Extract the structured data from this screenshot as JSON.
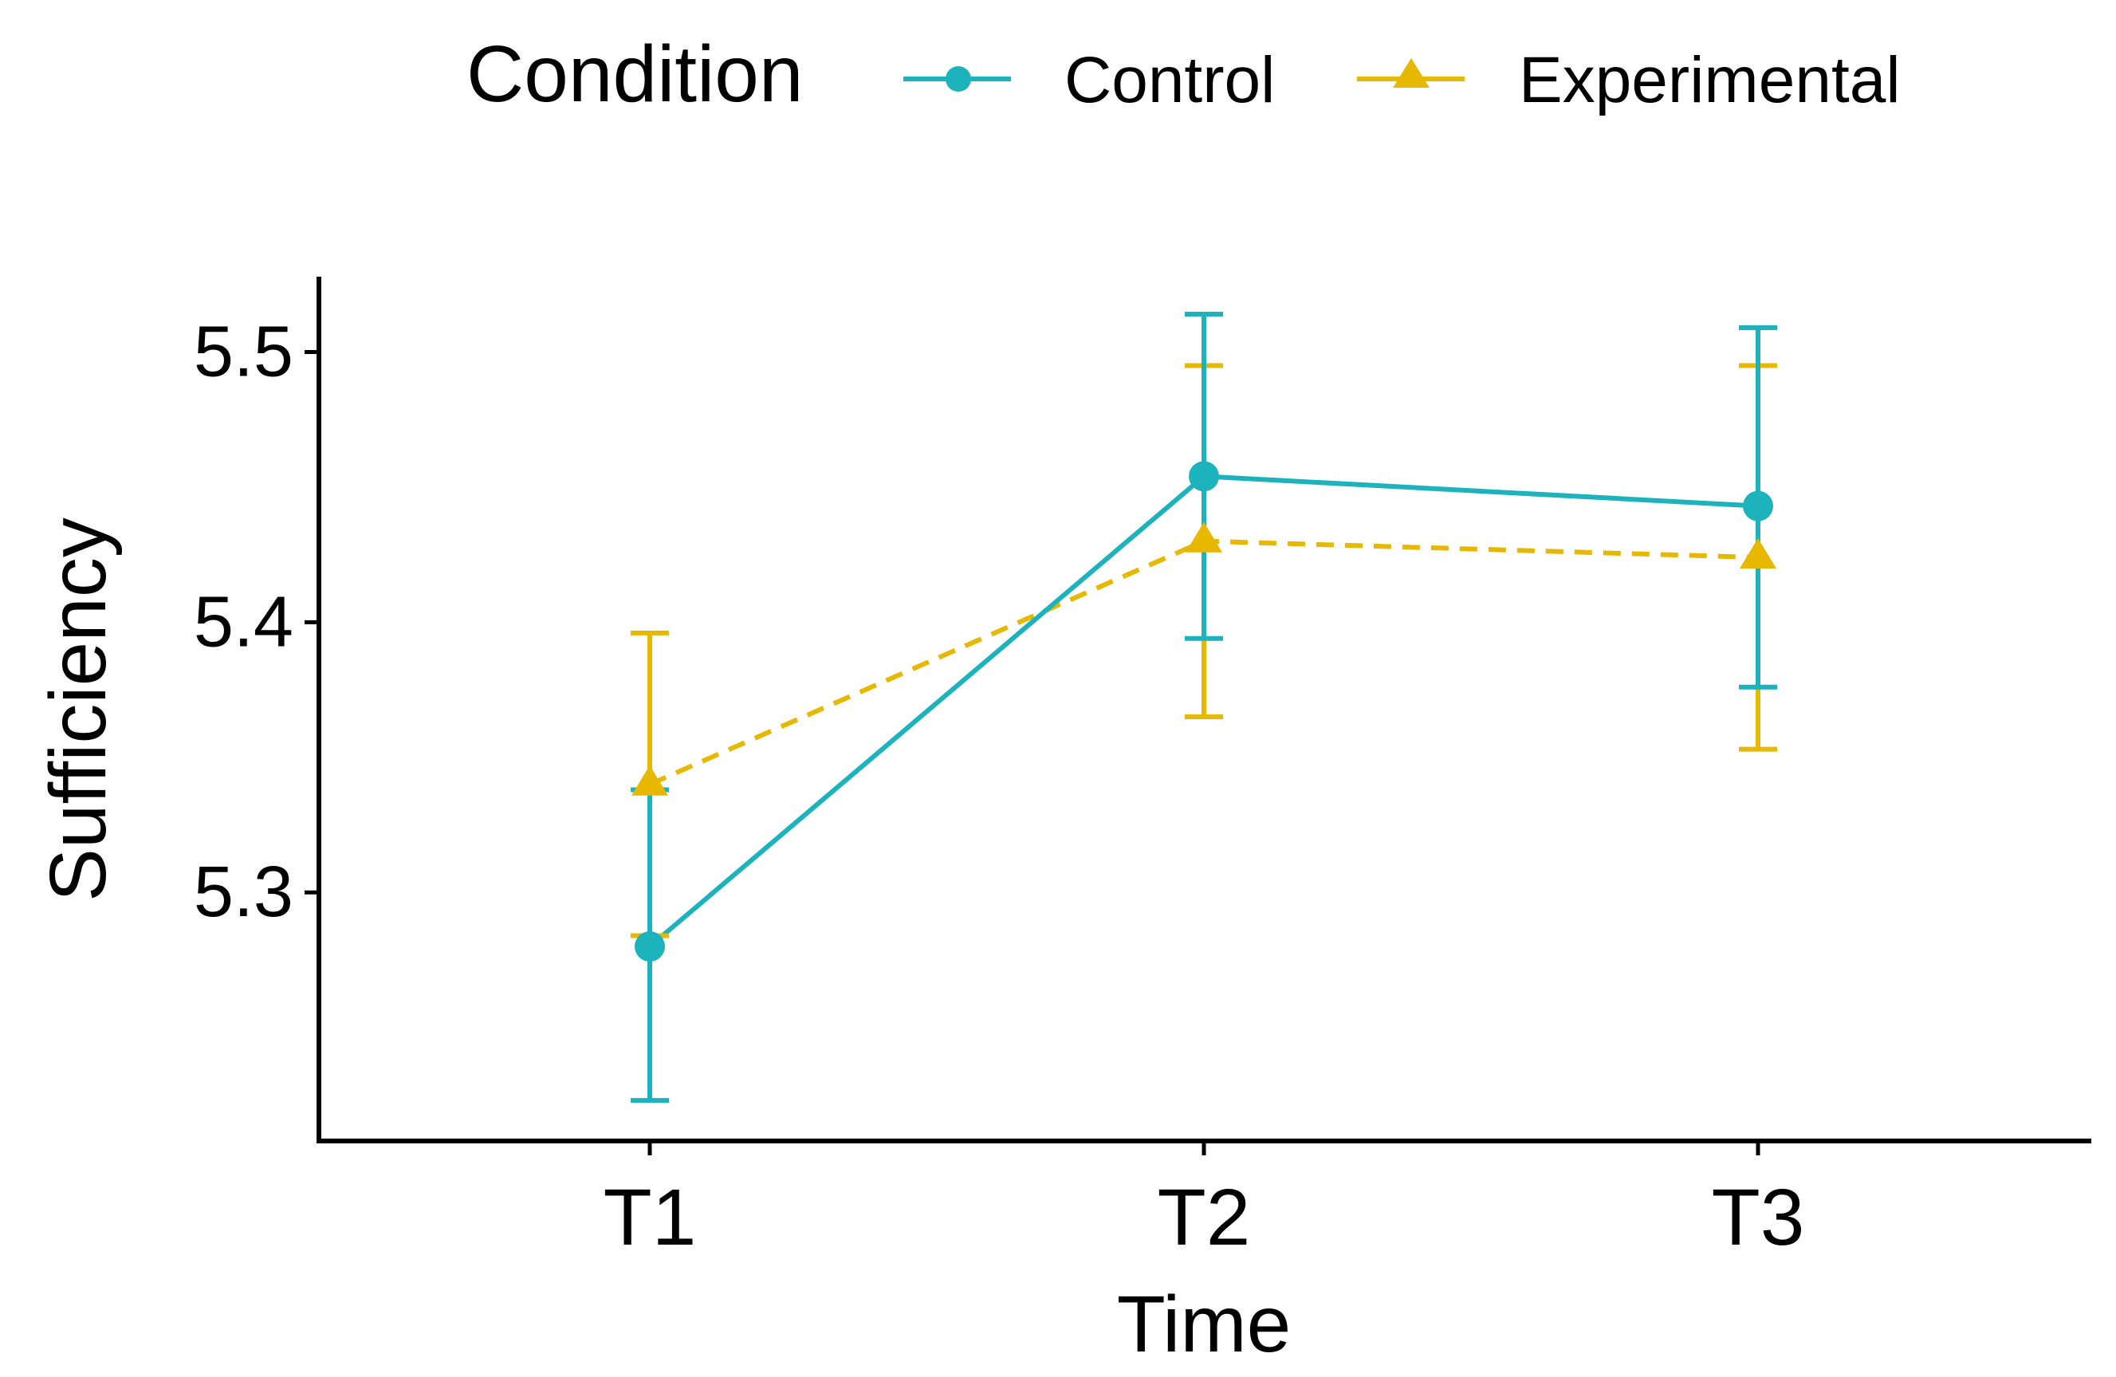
{
  "chart_data": {
    "type": "line",
    "title": "",
    "xlabel": "Time",
    "ylabel": "Sufficiency",
    "categories": [
      "T1",
      "T2",
      "T3"
    ],
    "yticks": [
      5.3,
      5.4,
      5.5
    ],
    "ytick_labels": [
      "5.3",
      "5.4",
      "5.5"
    ],
    "ylim": [
      5.208,
      5.527
    ],
    "grid": false,
    "legend": {
      "title": "Condition",
      "position": "top",
      "entries": [
        "Control",
        "Experimental"
      ]
    },
    "series": [
      {
        "name": "Control",
        "color": "#1CB3BD",
        "marker": "circle",
        "line_style": "solid",
        "values": [
          5.28,
          5.454,
          5.443
        ],
        "error_low": [
          5.223,
          5.394,
          5.376
        ],
        "error_high": [
          5.338,
          5.514,
          5.509
        ]
      },
      {
        "name": "Experimental",
        "color": "#E7B800",
        "marker": "triangle",
        "line_style": "dashed",
        "values": [
          5.34,
          5.43,
          5.424
        ],
        "error_low": [
          5.284,
          5.365,
          5.353
        ],
        "error_high": [
          5.396,
          5.495,
          5.495
        ]
      }
    ]
  }
}
